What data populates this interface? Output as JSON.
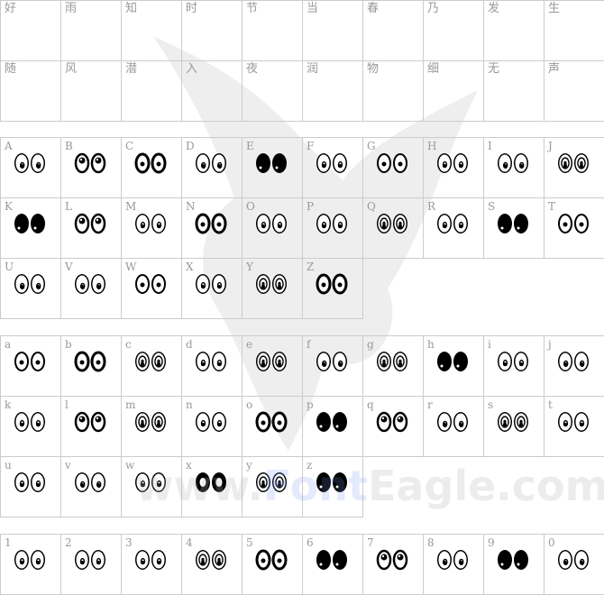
{
  "chinese_rows": [
    [
      "好",
      "雨",
      "知",
      "时",
      "节",
      "当",
      "春",
      "乃",
      "发",
      "生"
    ],
    [
      "随",
      "风",
      "潜",
      "入",
      "夜",
      "润",
      "物",
      "细",
      "无",
      "声"
    ]
  ],
  "uppercase": [
    {
      "char": "A",
      "style": "spiral"
    },
    {
      "char": "B",
      "style": "pupil-top"
    },
    {
      "char": "C",
      "style": "thick-dot"
    },
    {
      "char": "D",
      "style": "spiral"
    },
    {
      "char": "E",
      "style": "solid"
    },
    {
      "char": "F",
      "style": "rings"
    },
    {
      "char": "G",
      "style": "ring-dot"
    },
    {
      "char": "H",
      "style": "rings"
    },
    {
      "char": "I",
      "style": "spiral"
    },
    {
      "char": "J",
      "style": "dense"
    },
    {
      "char": "K",
      "style": "solid-dot"
    },
    {
      "char": "L",
      "style": "pupil-top"
    },
    {
      "char": "M",
      "style": "rings"
    },
    {
      "char": "N",
      "style": "thick-dot"
    },
    {
      "char": "O",
      "style": "rings"
    },
    {
      "char": "P",
      "style": "rings"
    },
    {
      "char": "Q",
      "style": "dense"
    },
    {
      "char": "R",
      "style": "rings"
    },
    {
      "char": "S",
      "style": "solid"
    },
    {
      "char": "T",
      "style": "ring-dot"
    },
    {
      "char": "U",
      "style": "spiral"
    },
    {
      "char": "V",
      "style": "spiral"
    },
    {
      "char": "W",
      "style": "ring-dot"
    },
    {
      "char": "X",
      "style": "rings"
    },
    {
      "char": "Y",
      "style": "dense"
    },
    {
      "char": "Z",
      "style": "thick-dot"
    }
  ],
  "lowercase": [
    {
      "char": "a",
      "style": "ring-dot"
    },
    {
      "char": "b",
      "style": "thick-dot"
    },
    {
      "char": "c",
      "style": "dense"
    },
    {
      "char": "d",
      "style": "rings"
    },
    {
      "char": "e",
      "style": "dense"
    },
    {
      "char": "f",
      "style": "spiral"
    },
    {
      "char": "g",
      "style": "dense"
    },
    {
      "char": "h",
      "style": "solid"
    },
    {
      "char": "i",
      "style": "rings"
    },
    {
      "char": "j",
      "style": "spiral"
    },
    {
      "char": "k",
      "style": "rings"
    },
    {
      "char": "l",
      "style": "pupil-top"
    },
    {
      "char": "m",
      "style": "dense"
    },
    {
      "char": "n",
      "style": "rings"
    },
    {
      "char": "o",
      "style": "thick-dot"
    },
    {
      "char": "p",
      "style": "solid-dot"
    },
    {
      "char": "q",
      "style": "pupil-top"
    },
    {
      "char": "r",
      "style": "spiral"
    },
    {
      "char": "s",
      "style": "dense"
    },
    {
      "char": "t",
      "style": "rings"
    },
    {
      "char": "u",
      "style": "rings"
    },
    {
      "char": "v",
      "style": "spiral"
    },
    {
      "char": "w",
      "style": "rings"
    },
    {
      "char": "x",
      "style": "thick"
    },
    {
      "char": "y",
      "style": "dense"
    },
    {
      "char": "z",
      "style": "solid"
    }
  ],
  "digits": [
    {
      "char": "1",
      "style": "rings"
    },
    {
      "char": "2",
      "style": "rings"
    },
    {
      "char": "3",
      "style": "rings"
    },
    {
      "char": "4",
      "style": "dense"
    },
    {
      "char": "5",
      "style": "thick-dot"
    },
    {
      "char": "6",
      "style": "solid-dot"
    },
    {
      "char": "7",
      "style": "pupil-top"
    },
    {
      "char": "8",
      "style": "spiral"
    },
    {
      "char": "9",
      "style": "solid-dot"
    },
    {
      "char": "0",
      "style": "spiral"
    }
  ],
  "watermark": {
    "prefix": "www.",
    "brand": "Font",
    "suffix": "Eagle.com"
  },
  "colors": {
    "grid": "#cccccc",
    "label": "#999999",
    "glyph": "#000000"
  }
}
